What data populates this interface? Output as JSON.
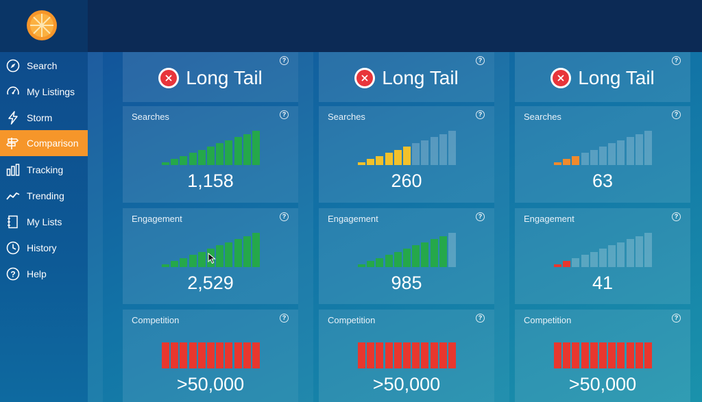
{
  "brand": {
    "logo": "orange-slice-logo",
    "accent": "#f6962a"
  },
  "sidebar": {
    "items": [
      {
        "label": "Search",
        "icon": "compass-icon"
      },
      {
        "label": "My Listings",
        "icon": "gauge-icon"
      },
      {
        "label": "Storm",
        "icon": "lightning-icon"
      },
      {
        "label": "Comparison",
        "icon": "signpost-icon",
        "active": true
      },
      {
        "label": "Tracking",
        "icon": "bar-chart-icon"
      },
      {
        "label": "Trending",
        "icon": "trend-line-icon"
      },
      {
        "label": "My Lists",
        "icon": "notebook-icon"
      },
      {
        "label": "History",
        "icon": "clock-icon"
      },
      {
        "label": "Help",
        "icon": "question-icon"
      }
    ]
  },
  "help_glyph": "?",
  "columns": [
    {
      "title": "Long Tail",
      "metrics": [
        {
          "label": "Searches",
          "value": "1,158",
          "level": 11,
          "color": "#25a84a"
        },
        {
          "label": "Engagement",
          "value": "2,529",
          "level": 11,
          "color": "#25a84a"
        },
        {
          "label": "Competition",
          "value": ">50,000",
          "level": 11,
          "color": "#e8372e"
        }
      ]
    },
    {
      "title": "Long Tail",
      "metrics": [
        {
          "label": "Searches",
          "value": "260",
          "level": 6,
          "color": "#f2c12b"
        },
        {
          "label": "Engagement",
          "value": "985",
          "level": 10,
          "color": "#25a84a"
        },
        {
          "label": "Competition",
          "value": ">50,000",
          "level": 11,
          "color": "#e8372e"
        }
      ]
    },
    {
      "title": "Long Tail",
      "metrics": [
        {
          "label": "Searches",
          "value": "63",
          "level": 3,
          "color": "#f08a2c"
        },
        {
          "label": "Engagement",
          "value": "41",
          "level": 2,
          "color": "#e8372e"
        },
        {
          "label": "Competition",
          "value": ">50,000",
          "level": 11,
          "color": "#e8372e"
        }
      ]
    }
  ],
  "bar_total": 11,
  "bar_inactive_color": "rgba(255,255,255,0.22)"
}
